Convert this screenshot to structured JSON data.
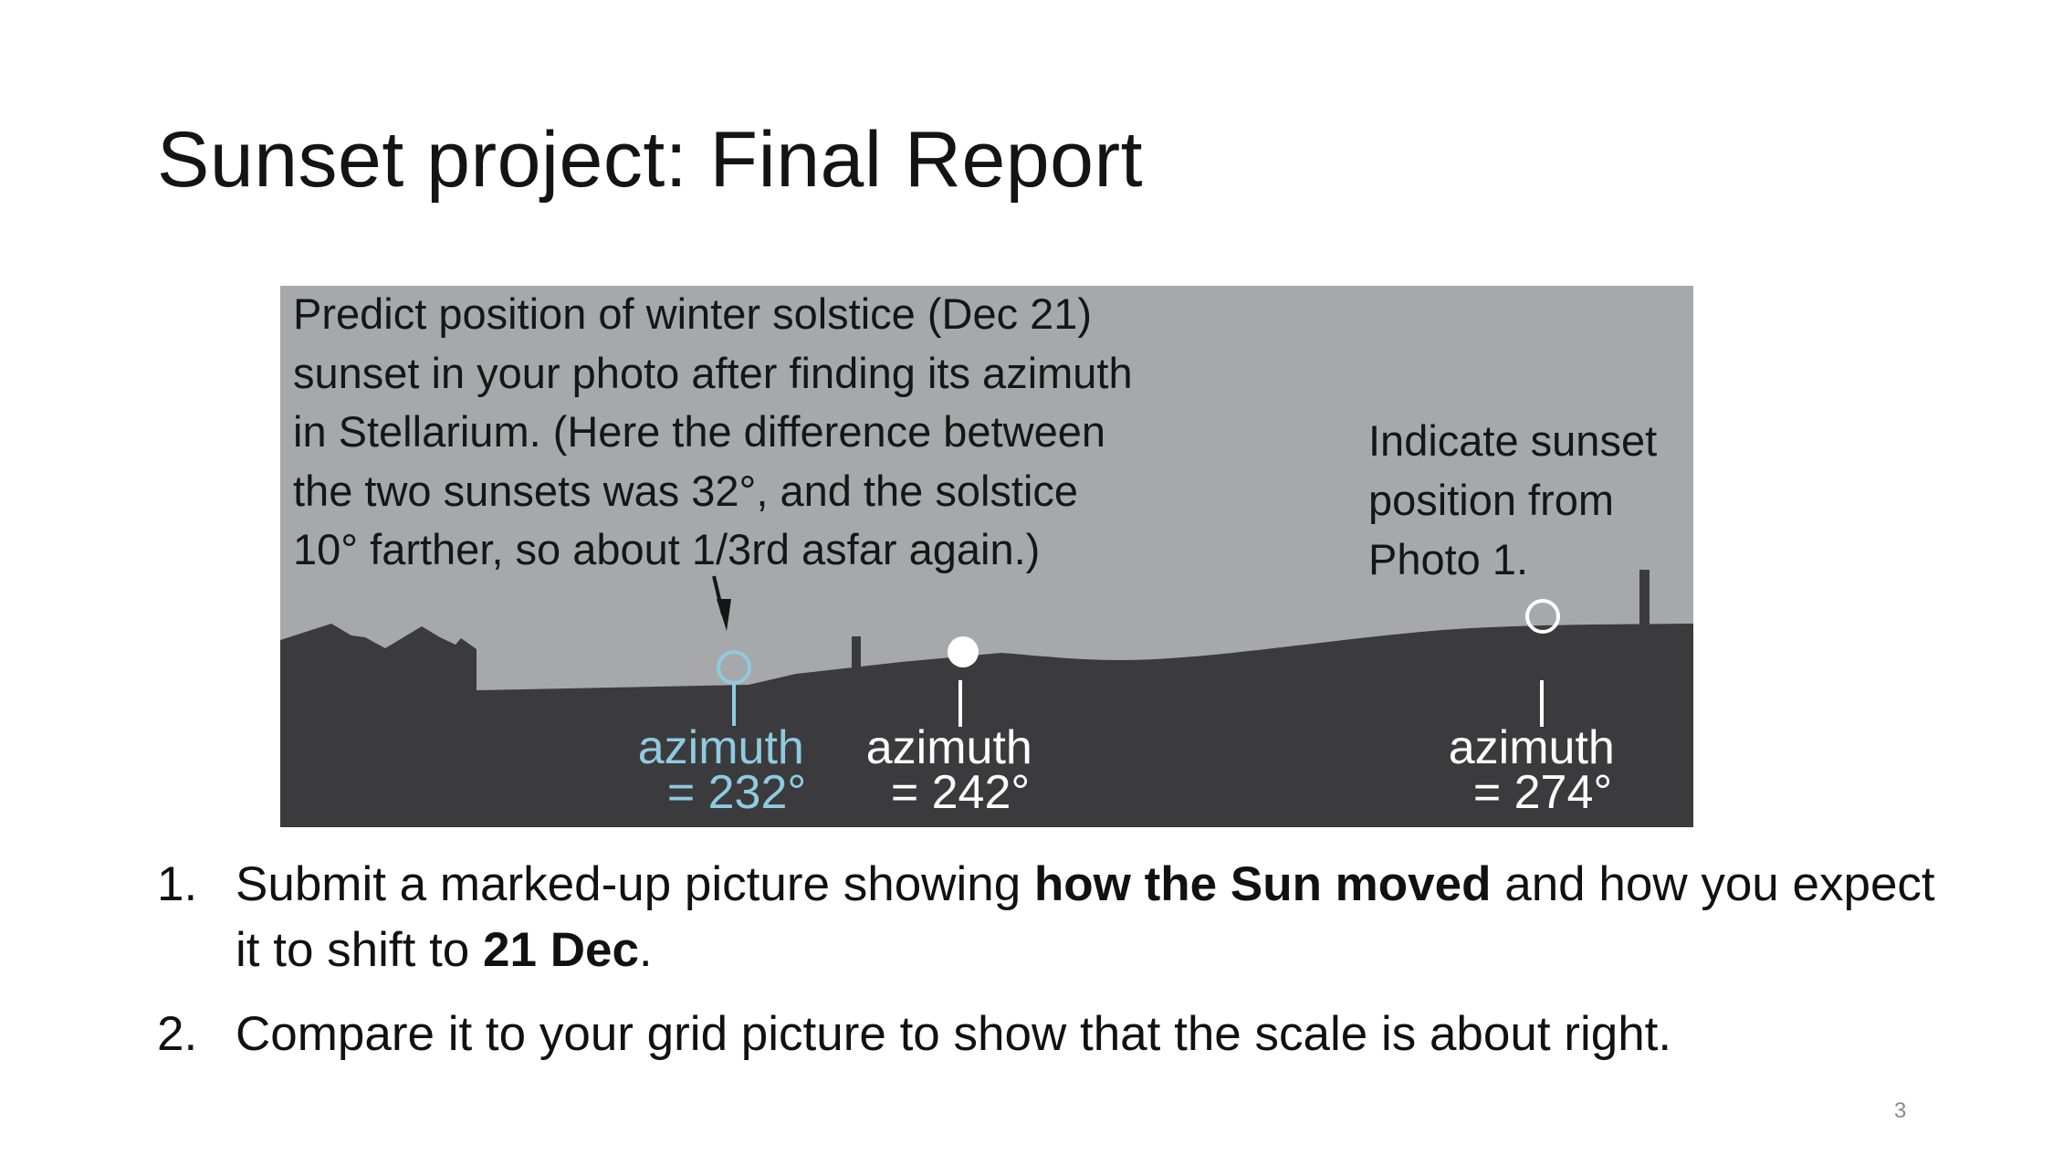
{
  "slide": {
    "title": "Sunset project: Final Report",
    "page_number": "3"
  },
  "figure": {
    "instruction_lines": [
      "Predict position of winter solstice (Dec 21)",
      "sunset in your photo after finding its azimuth",
      "in Stellarium. (Here the difference between",
      "the two sunsets was 32°, and the solstice",
      "10° farther, so about 1/3rd asfar again.)"
    ],
    "note_lines": [
      "Indicate sunset",
      "position from",
      "Photo 1."
    ],
    "markers": [
      {
        "label_1": "azimuth",
        "label_2": "= 232°",
        "style": "predicted-open-circle",
        "color": "#8fcbe0"
      },
      {
        "label_1": "azimuth",
        "label_2": "= 242°",
        "style": "filled-circle",
        "color": "#ffffff"
      },
      {
        "label_1": "azimuth",
        "label_2": "= 274°",
        "style": "open-circle",
        "color": "#ffffff"
      }
    ],
    "colors": {
      "sky": "#a7a8ab",
      "ground": "#3b3b3d",
      "predicted": "#8fcbe0"
    }
  },
  "tasks": [
    {
      "number": "1.",
      "parts": [
        {
          "text": "Submit a marked-up picture showing ",
          "bold": false
        },
        {
          "text": "how the Sun moved",
          "bold": true
        },
        {
          "text": " and how you expect it to shift to ",
          "bold": false
        },
        {
          "text": "21 Dec",
          "bold": true
        },
        {
          "text": ".",
          "bold": false
        }
      ]
    },
    {
      "number": "2.",
      "parts": [
        {
          "text": "Compare it to your grid picture to show that the scale is about right.",
          "bold": false
        }
      ]
    }
  ]
}
